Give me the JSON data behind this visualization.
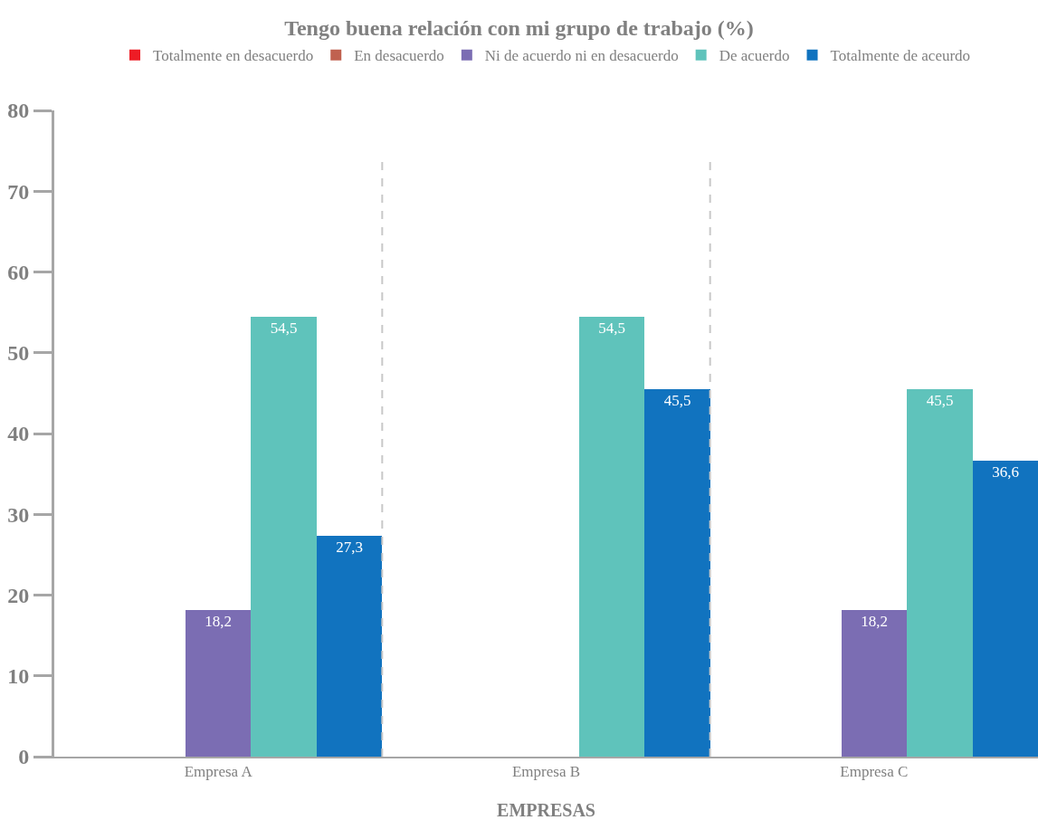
{
  "chart_data": {
    "type": "bar",
    "title": "Tengo buena relación con mi grupo de trabajo (%)",
    "xlabel": "EMPRESAS",
    "categories": [
      "Empresa A",
      "Empresa B",
      "Empresa C"
    ],
    "series": [
      {
        "name": "Totalmente en desacuerdo",
        "color": "#ee1c25",
        "values": [
          null,
          null,
          null
        ],
        "value_labels": [
          null,
          null,
          null
        ]
      },
      {
        "name": "En desacuerdo",
        "color": "#c0614f",
        "values": [
          null,
          null,
          null
        ],
        "value_labels": [
          null,
          null,
          null
        ]
      },
      {
        "name": "Ni de acuerdo ni en desacuerdo",
        "color": "#7b6db3",
        "values": [
          18.2,
          null,
          18.2
        ],
        "value_labels": [
          "18,2",
          null,
          "18,2"
        ]
      },
      {
        "name": "De acuerdo",
        "color": "#5fc3bb",
        "values": [
          54.5,
          54.5,
          45.5
        ],
        "value_labels": [
          "54,5",
          "54,5",
          "45,5"
        ]
      },
      {
        "name": "Totalmente de aceurdo",
        "color": "#1173bf",
        "values": [
          27.3,
          45.5,
          36.6
        ],
        "value_labels": [
          "27,3",
          "45,5",
          "36,6"
        ]
      }
    ],
    "ylim": [
      0,
      80
    ],
    "yticks": [
      0,
      10,
      20,
      30,
      40,
      50,
      60,
      70,
      80
    ],
    "grid": "x",
    "legend": "top"
  }
}
